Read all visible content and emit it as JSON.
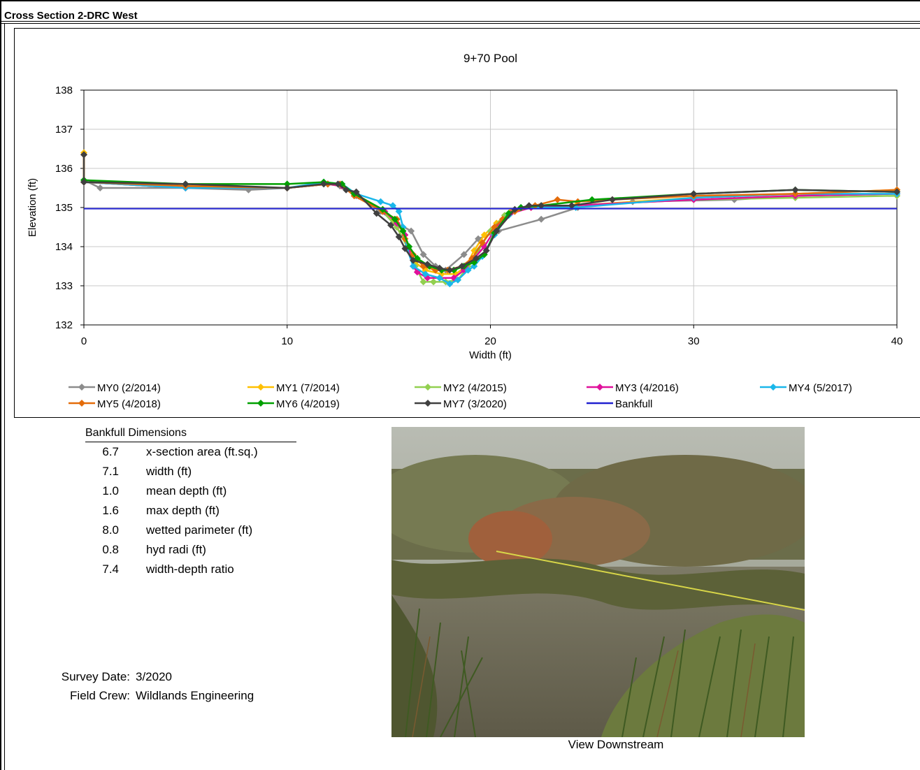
{
  "header": {
    "title": "Cross Section  2-DRC West"
  },
  "chart_data": {
    "type": "line",
    "title": "9+70 Pool",
    "xlabel": "Width (ft)",
    "ylabel": "Elevation (ft)",
    "xlim": [
      0,
      40
    ],
    "ylim": [
      132,
      138
    ],
    "x_ticks": [
      0,
      10,
      20,
      30,
      40
    ],
    "y_ticks": [
      132,
      133,
      134,
      135,
      136,
      137,
      138
    ],
    "grid": true,
    "legend_position": "bottom",
    "series": [
      {
        "name": "MY0 (2/2014)",
        "color": "#8c8c8c",
        "marker": "diamond",
        "points": [
          [
            0,
            135.7
          ],
          [
            0.8,
            135.5
          ],
          [
            5,
            135.5
          ],
          [
            8.1,
            135.45
          ],
          [
            10,
            135.5
          ],
          [
            12,
            135.6
          ],
          [
            12.6,
            135.55
          ],
          [
            13.4,
            135.3
          ],
          [
            14.6,
            134.9
          ],
          [
            15.4,
            134.6
          ],
          [
            16.1,
            134.4
          ],
          [
            16.7,
            133.8
          ],
          [
            17.3,
            133.5
          ],
          [
            17.8,
            133.4
          ],
          [
            18.7,
            133.8
          ],
          [
            19.4,
            134.2
          ],
          [
            20.4,
            134.4
          ],
          [
            22.5,
            134.7
          ],
          [
            24.3,
            135.0
          ],
          [
            27,
            135.15
          ],
          [
            32,
            135.2
          ],
          [
            35,
            135.3
          ],
          [
            40,
            135.35
          ]
        ]
      },
      {
        "name": "MY1 (7/2014)",
        "color": "#ffc000",
        "marker": "diamond",
        "points": [
          [
            0,
            136.4
          ],
          [
            0,
            135.65
          ],
          [
            5,
            135.55
          ],
          [
            10,
            135.5
          ],
          [
            12,
            135.6
          ],
          [
            12.7,
            135.55
          ],
          [
            13.5,
            135.3
          ],
          [
            14.7,
            134.95
          ],
          [
            15.4,
            134.5
          ],
          [
            15.9,
            134.0
          ],
          [
            16.3,
            133.6
          ],
          [
            16.8,
            133.4
          ],
          [
            17.6,
            133.3
          ],
          [
            18.3,
            133.3
          ],
          [
            18.8,
            133.5
          ],
          [
            19.2,
            133.9
          ],
          [
            19.7,
            134.3
          ],
          [
            20.3,
            134.6
          ],
          [
            21.0,
            134.9
          ],
          [
            22.0,
            135.0
          ],
          [
            24.2,
            135.05
          ],
          [
            30,
            135.25
          ],
          [
            35,
            135.35
          ],
          [
            40,
            135.45
          ]
        ]
      },
      {
        "name": "MY2 (4/2015)",
        "color": "#92d050",
        "marker": "diamond",
        "points": [
          [
            0,
            135.65
          ],
          [
            5,
            135.5
          ],
          [
            10,
            135.5
          ],
          [
            12,
            135.6
          ],
          [
            12.7,
            135.55
          ],
          [
            13.5,
            135.3
          ],
          [
            14.7,
            134.9
          ],
          [
            15.4,
            134.5
          ],
          [
            15.9,
            134.0
          ],
          [
            16.3,
            133.5
          ],
          [
            16.7,
            133.1
          ],
          [
            17.2,
            133.1
          ],
          [
            17.8,
            133.1
          ],
          [
            18.4,
            133.15
          ],
          [
            18.9,
            133.5
          ],
          [
            19.4,
            133.9
          ],
          [
            20.0,
            134.4
          ],
          [
            20.7,
            134.8
          ],
          [
            21.5,
            135.0
          ],
          [
            24,
            135.05
          ],
          [
            30,
            135.2
          ],
          [
            35,
            135.25
          ],
          [
            40,
            135.3
          ]
        ]
      },
      {
        "name": "MY3 (4/2016)",
        "color": "#e0109b",
        "marker": "diamond",
        "points": [
          [
            0,
            135.65
          ],
          [
            5,
            135.5
          ],
          [
            10,
            135.5
          ],
          [
            12,
            135.6
          ],
          [
            12.7,
            135.55
          ],
          [
            13.5,
            135.3
          ],
          [
            14.8,
            134.9
          ],
          [
            15.4,
            134.6
          ],
          [
            15.8,
            134.3
          ],
          [
            16.0,
            133.9
          ],
          [
            16.2,
            133.5
          ],
          [
            16.4,
            133.35
          ],
          [
            16.9,
            133.2
          ],
          [
            17.5,
            133.2
          ],
          [
            18.2,
            133.2
          ],
          [
            18.7,
            133.4
          ],
          [
            19.2,
            133.7
          ],
          [
            19.7,
            134.0
          ],
          [
            20.3,
            134.5
          ],
          [
            21.0,
            134.85
          ],
          [
            22.0,
            135.0
          ],
          [
            24,
            135.05
          ],
          [
            30,
            135.2
          ],
          [
            35,
            135.3
          ],
          [
            40,
            135.35
          ]
        ]
      },
      {
        "name": "MY4 (5/2017)",
        "color": "#1ab7ea",
        "marker": "diamond",
        "points": [
          [
            0,
            135.65
          ],
          [
            5,
            135.5
          ],
          [
            10,
            135.5
          ],
          [
            11.8,
            135.65
          ],
          [
            12.7,
            135.6
          ],
          [
            13.4,
            135.35
          ],
          [
            14.6,
            135.15
          ],
          [
            15.2,
            135.05
          ],
          [
            15.5,
            134.9
          ],
          [
            15.7,
            134.5
          ],
          [
            15.9,
            133.95
          ],
          [
            16.2,
            133.5
          ],
          [
            16.8,
            133.3
          ],
          [
            17.5,
            133.2
          ],
          [
            18.0,
            133.05
          ],
          [
            18.4,
            133.15
          ],
          [
            18.9,
            133.4
          ],
          [
            19.2,
            133.5
          ],
          [
            19.6,
            133.75
          ],
          [
            20.2,
            134.3
          ],
          [
            20.9,
            134.8
          ],
          [
            21.5,
            135.0
          ],
          [
            24.2,
            135.0
          ],
          [
            30,
            135.25
          ],
          [
            35,
            135.35
          ],
          [
            40,
            135.35
          ]
        ]
      },
      {
        "name": "MY5 (4/2018)",
        "color": "#e46c0a",
        "marker": "diamond",
        "points": [
          [
            0,
            136.35
          ],
          [
            0,
            135.65
          ],
          [
            5,
            135.55
          ],
          [
            10,
            135.5
          ],
          [
            12,
            135.6
          ],
          [
            12.6,
            135.6
          ],
          [
            13.3,
            135.3
          ],
          [
            14.7,
            134.9
          ],
          [
            15.4,
            134.7
          ],
          [
            15.8,
            134.2
          ],
          [
            16.2,
            133.8
          ],
          [
            16.7,
            133.5
          ],
          [
            17.3,
            133.4
          ],
          [
            17.9,
            133.4
          ],
          [
            18.6,
            133.5
          ],
          [
            19.1,
            133.7
          ],
          [
            19.6,
            134.1
          ],
          [
            20.2,
            134.5
          ],
          [
            20.6,
            134.7
          ],
          [
            21.2,
            134.9
          ],
          [
            22.2,
            135.05
          ],
          [
            23.3,
            135.2
          ],
          [
            24.3,
            135.15
          ],
          [
            26,
            135.2
          ],
          [
            30,
            135.3
          ],
          [
            35,
            135.35
          ],
          [
            40,
            135.45
          ]
        ]
      },
      {
        "name": "MY6 (4/2019)",
        "color": "#00a000",
        "marker": "diamond",
        "points": [
          [
            0,
            135.7
          ],
          [
            5,
            135.6
          ],
          [
            10,
            135.6
          ],
          [
            11.8,
            135.65
          ],
          [
            12.7,
            135.6
          ],
          [
            13.3,
            135.35
          ],
          [
            14.7,
            134.95
          ],
          [
            15.3,
            134.7
          ],
          [
            15.7,
            134.4
          ],
          [
            16.0,
            134.0
          ],
          [
            16.4,
            133.7
          ],
          [
            17.0,
            133.5
          ],
          [
            17.6,
            133.4
          ],
          [
            18.2,
            133.4
          ],
          [
            18.7,
            133.5
          ],
          [
            19.2,
            133.6
          ],
          [
            19.7,
            133.8
          ],
          [
            20.2,
            134.35
          ],
          [
            20.9,
            134.85
          ],
          [
            21.5,
            135.0
          ],
          [
            22.5,
            135.05
          ],
          [
            25,
            135.2
          ],
          [
            30,
            135.35
          ],
          [
            35,
            135.45
          ],
          [
            40,
            135.4
          ]
        ]
      },
      {
        "name": "MY7 (3/2020)",
        "color": "#404040",
        "marker": "diamond",
        "points": [
          [
            0,
            136.35
          ],
          [
            0,
            135.65
          ],
          [
            5,
            135.6
          ],
          [
            10,
            135.5
          ],
          [
            11.8,
            135.6
          ],
          [
            12.5,
            135.6
          ],
          [
            12.9,
            135.45
          ],
          [
            13.4,
            135.4
          ],
          [
            14.4,
            134.85
          ],
          [
            15.1,
            134.55
          ],
          [
            15.5,
            134.25
          ],
          [
            15.8,
            133.95
          ],
          [
            16.2,
            133.65
          ],
          [
            16.9,
            133.55
          ],
          [
            17.5,
            133.45
          ],
          [
            18.0,
            133.4
          ],
          [
            18.6,
            133.5
          ],
          [
            19.3,
            133.7
          ],
          [
            19.8,
            133.9
          ],
          [
            20.3,
            134.4
          ],
          [
            21.2,
            134.95
          ],
          [
            21.9,
            135.05
          ],
          [
            22.5,
            135.05
          ],
          [
            24,
            135.05
          ],
          [
            26,
            135.2
          ],
          [
            30,
            135.35
          ],
          [
            35,
            135.45
          ],
          [
            40,
            135.4
          ]
        ]
      },
      {
        "name": "Bankfull",
        "color": "#2020d0",
        "marker": "none",
        "points": [
          [
            0,
            134.97
          ],
          [
            40,
            134.97
          ]
        ]
      }
    ]
  },
  "bankfull": {
    "title": "Bankfull Dimensions",
    "rows": [
      {
        "value": "6.7",
        "label": "x-section area (ft.sq.)"
      },
      {
        "value": "7.1",
        "label": "width (ft)"
      },
      {
        "value": "1.0",
        "label": "mean depth (ft)"
      },
      {
        "value": "1.6",
        "label": "max depth (ft)"
      },
      {
        "value": "8.0",
        "label": "wetted parimeter (ft)"
      },
      {
        "value": "0.8",
        "label": "hyd radi (ft)"
      },
      {
        "value": "7.4",
        "label": "width-depth ratio"
      }
    ]
  },
  "survey": {
    "date_label": "Survey Date:",
    "date_value": "3/2020",
    "crew_label": "Field Crew:",
    "crew_value": "Wildlands Engineering"
  },
  "photo": {
    "caption": "View Downstream"
  }
}
